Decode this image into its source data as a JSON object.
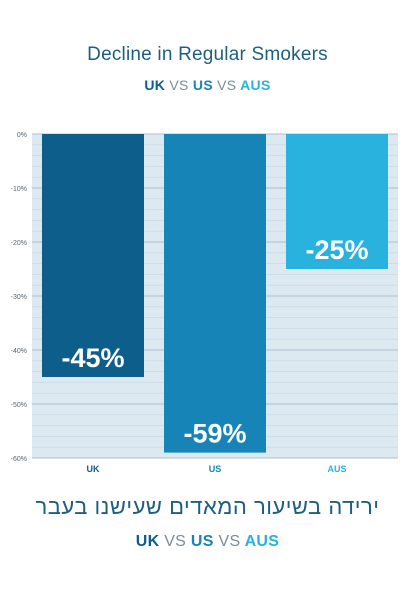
{
  "chart_data": {
    "type": "bar",
    "title": "Decline in Regular Smokers",
    "categories": [
      "UK",
      "US",
      "AUS"
    ],
    "values": [
      -45,
      -59,
      -25
    ],
    "data_labels": [
      "-45%",
      "-59%",
      "-25%"
    ],
    "ylim": [
      -60,
      0
    ],
    "yticks": [
      0,
      -10,
      -20,
      -30,
      -40,
      -50,
      -60
    ],
    "ytick_labels": [
      "0%",
      "-10%",
      "-20%",
      "-30%",
      "-40%",
      "-50%",
      "-60%"
    ],
    "grid": true,
    "colors": [
      "#0d5e8b",
      "#1684b6",
      "#29b2de"
    ]
  },
  "subtitle": {
    "uk": "UK",
    "vs1": "VS",
    "us": "US",
    "vs2": "VS",
    "aus": "AUS"
  },
  "hebrew_caption": "ירידה בשיעור המאדים שעישנו בעבר",
  "background_color": "#dde9f1"
}
